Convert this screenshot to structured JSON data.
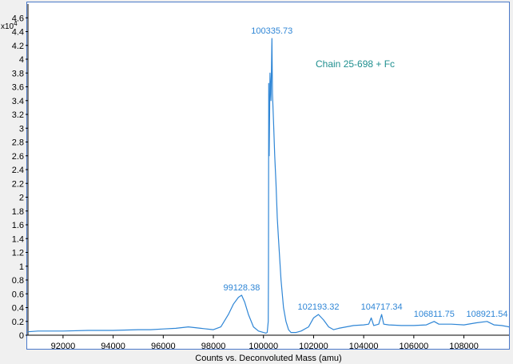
{
  "chart_data": {
    "type": "line",
    "title": "",
    "xlabel": "Counts vs. Deconvoluted Mass (amu)",
    "ylabel": "",
    "y_scale_label": "x10",
    "y_scale_exponent": "4",
    "xlim": [
      90600,
      109800
    ],
    "ylim": [
      0,
      4.8
    ],
    "x_ticks": [
      92000,
      94000,
      96000,
      98000,
      100000,
      102000,
      104000,
      106000,
      108000
    ],
    "x_tick_labels": [
      "92000",
      "94000",
      "96000",
      "98000",
      "100000",
      "102000",
      "104000",
      "106000",
      "108000"
    ],
    "y_ticks": [
      0,
      0.2,
      0.4,
      0.6,
      0.8,
      1,
      1.2,
      1.4,
      1.6,
      1.8,
      2,
      2.2,
      2.4,
      2.6,
      2.8,
      3,
      3.2,
      3.4,
      3.6,
      3.8,
      4,
      4.2,
      4.4,
      4.6
    ],
    "y_tick_labels": [
      "0",
      "0.2",
      "0.4",
      "0.6",
      "0.8",
      "1",
      "1.2",
      "1.4",
      "1.6",
      "1.8",
      "2",
      "2.2",
      "2.4",
      "2.6",
      "2.8",
      "3",
      "3.2",
      "3.4",
      "3.6",
      "3.8",
      "4",
      "4.2",
      "4.4",
      "4.6"
    ],
    "grid": false,
    "line_color": "#2f86d6",
    "annotation": "Chain 25-698 + Fc",
    "annotation_color": "#1f8f8f",
    "peak_labels": [
      {
        "label": "100335.73",
        "x": 100335.73,
        "y": 4.3
      },
      {
        "label": "99128.38",
        "x": 99128.38,
        "y": 0.58
      },
      {
        "label": "102193.32",
        "x": 102193.32,
        "y": 0.3
      },
      {
        "label": "104717.34",
        "x": 104717.34,
        "y": 0.3
      },
      {
        "label": "106811.75",
        "x": 106811.75,
        "y": 0.2
      },
      {
        "label": "108921.54",
        "x": 108921.54,
        "y": 0.2
      }
    ],
    "series": [
      {
        "x": [
          90600,
          91000,
          92000,
          93000,
          94000,
          95000,
          95500,
          96000,
          96500,
          97000,
          97500,
          98000,
          98300,
          98600,
          98800,
          99000,
          99128,
          99250,
          99400,
          99600,
          99800,
          100000,
          100100,
          100150,
          100190,
          100200,
          100210,
          100230,
          100260,
          100300,
          100336,
          100360,
          100400,
          100450,
          100500,
          100550,
          100600,
          100700,
          100800,
          100900,
          101000,
          101100,
          101300,
          101500,
          101800,
          102000,
          102193,
          102400,
          102600,
          102800,
          103000,
          103300,
          103600,
          104000,
          104200,
          104300,
          104400,
          104600,
          104717,
          104800,
          105000,
          105500,
          106000,
          106500,
          106812,
          107000,
          107500,
          108000,
          108500,
          108922,
          109200,
          109500,
          109800
        ],
        "y": [
          0.05,
          0.06,
          0.06,
          0.07,
          0.07,
          0.08,
          0.08,
          0.09,
          0.1,
          0.12,
          0.1,
          0.08,
          0.12,
          0.3,
          0.45,
          0.55,
          0.58,
          0.48,
          0.3,
          0.12,
          0.06,
          0.04,
          0.03,
          0.04,
          0.2,
          1.0,
          3.65,
          2.6,
          3.8,
          3.4,
          4.3,
          3.5,
          3.1,
          2.6,
          2.2,
          1.7,
          1.4,
          0.8,
          0.4,
          0.2,
          0.08,
          0.04,
          0.04,
          0.06,
          0.12,
          0.25,
          0.3,
          0.22,
          0.12,
          0.08,
          0.1,
          0.12,
          0.14,
          0.15,
          0.16,
          0.25,
          0.14,
          0.16,
          0.3,
          0.16,
          0.15,
          0.14,
          0.14,
          0.15,
          0.2,
          0.16,
          0.16,
          0.15,
          0.18,
          0.2,
          0.15,
          0.14,
          0.12
        ]
      }
    ]
  }
}
